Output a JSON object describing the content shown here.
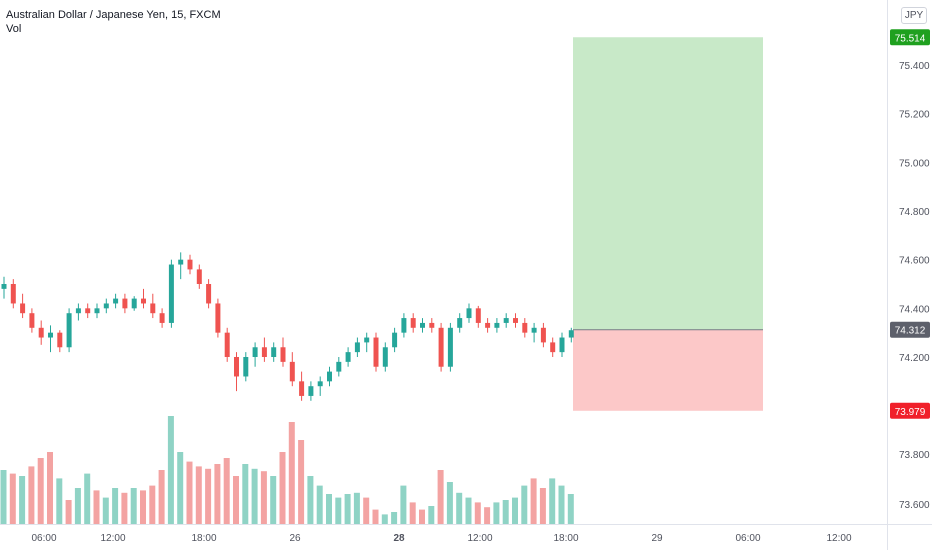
{
  "legend": {
    "symbol_title": "Australian Dollar / Japanese Yen, 15, FXCM",
    "volume_label": "Vol"
  },
  "currency_badge": "JPY",
  "colors": {
    "up": "#26a69a",
    "down": "#ef5350",
    "up_volume": "#8fd3c5",
    "down_volume": "#f3a3a2",
    "target_zone": "#c8e9c8",
    "stop_zone": "#fcc8c8",
    "target_badge": "#1fa01f",
    "stop_badge": "#f0202a",
    "last_badge": "#5d606b"
  },
  "chart_data": {
    "type": "candlestick",
    "title": "Australian Dollar / Japanese Yen, 15, FXCM",
    "y_axis": {
      "ticks": [
        "75.400",
        "75.200",
        "75.000",
        "74.800",
        "74.600",
        "74.400",
        "74.200",
        "73.800",
        "73.600"
      ],
      "range": [
        73.55,
        75.6
      ]
    },
    "x_axis": {
      "ticks": [
        "06:00",
        "12:00",
        "18:00",
        "26",
        "28",
        "12:00",
        "18:00",
        "29",
        "06:00",
        "12:00"
      ],
      "bold_ticks": [
        "28"
      ]
    },
    "price_badges": {
      "target": "75.514",
      "last": "74.312",
      "stop": "73.979"
    },
    "position": {
      "entry": 74.312,
      "target": 75.514,
      "stop": 73.979
    },
    "candles": [
      [
        74.48,
        74.53,
        74.44,
        74.5
      ],
      [
        74.5,
        74.52,
        74.4,
        74.42
      ],
      [
        74.42,
        74.46,
        74.36,
        74.38
      ],
      [
        74.38,
        74.4,
        74.3,
        74.32
      ],
      [
        74.32,
        74.35,
        74.25,
        74.28
      ],
      [
        74.28,
        74.33,
        74.22,
        74.3
      ],
      [
        74.3,
        74.31,
        74.22,
        74.24
      ],
      [
        74.24,
        74.4,
        74.22,
        74.38
      ],
      [
        74.38,
        74.42,
        74.35,
        74.4
      ],
      [
        74.4,
        74.42,
        74.36,
        74.38
      ],
      [
        74.38,
        74.42,
        74.36,
        74.4
      ],
      [
        74.4,
        74.44,
        74.38,
        74.42
      ],
      [
        74.42,
        74.46,
        74.4,
        74.44
      ],
      [
        74.44,
        74.46,
        74.38,
        74.4
      ],
      [
        74.4,
        74.45,
        74.39,
        74.44
      ],
      [
        74.44,
        74.48,
        74.4,
        74.42
      ],
      [
        74.42,
        74.46,
        74.36,
        74.38
      ],
      [
        74.38,
        74.4,
        74.32,
        74.34
      ],
      [
        74.34,
        74.6,
        74.32,
        74.58
      ],
      [
        74.58,
        74.63,
        74.52,
        74.6
      ],
      [
        74.6,
        74.62,
        74.54,
        74.56
      ],
      [
        74.56,
        74.58,
        74.48,
        74.5
      ],
      [
        74.5,
        74.52,
        74.4,
        74.42
      ],
      [
        74.42,
        74.44,
        74.28,
        74.3
      ],
      [
        74.3,
        74.32,
        74.18,
        74.2
      ],
      [
        74.2,
        74.22,
        74.06,
        74.12
      ],
      [
        74.12,
        74.22,
        74.1,
        74.2
      ],
      [
        74.2,
        74.26,
        74.16,
        74.24
      ],
      [
        74.24,
        74.28,
        74.18,
        74.2
      ],
      [
        74.2,
        74.26,
        74.18,
        74.24
      ],
      [
        74.24,
        74.28,
        74.16,
        74.18
      ],
      [
        74.18,
        74.22,
        74.08,
        74.1
      ],
      [
        74.1,
        74.14,
        74.02,
        74.04
      ],
      [
        74.04,
        74.1,
        74.02,
        74.08
      ],
      [
        74.08,
        74.12,
        74.04,
        74.1
      ],
      [
        74.1,
        74.16,
        74.08,
        74.14
      ],
      [
        74.14,
        74.2,
        74.12,
        74.18
      ],
      [
        74.18,
        74.24,
        74.16,
        74.22
      ],
      [
        74.22,
        74.28,
        74.2,
        74.26
      ],
      [
        74.26,
        74.3,
        74.22,
        74.28
      ],
      [
        74.28,
        74.3,
        74.14,
        74.16
      ],
      [
        74.16,
        74.26,
        74.14,
        74.24
      ],
      [
        74.24,
        74.32,
        74.22,
        74.3
      ],
      [
        74.3,
        74.38,
        74.28,
        74.36
      ],
      [
        74.36,
        74.38,
        74.3,
        74.32
      ],
      [
        74.32,
        74.36,
        74.3,
        74.34
      ],
      [
        74.34,
        74.36,
        74.3,
        74.32
      ],
      [
        74.32,
        74.34,
        74.14,
        74.16
      ],
      [
        74.16,
        74.34,
        74.14,
        74.32
      ],
      [
        74.32,
        74.38,
        74.3,
        74.36
      ],
      [
        74.36,
        74.42,
        74.34,
        74.4
      ],
      [
        74.4,
        74.41,
        74.32,
        74.34
      ],
      [
        74.34,
        74.36,
        74.3,
        74.32
      ],
      [
        74.32,
        74.36,
        74.3,
        74.34
      ],
      [
        74.34,
        74.38,
        74.32,
        74.36
      ],
      [
        74.36,
        74.38,
        74.32,
        74.34
      ],
      [
        74.34,
        74.36,
        74.28,
        74.3
      ],
      [
        74.3,
        74.34,
        74.26,
        74.32
      ],
      [
        74.32,
        74.34,
        74.24,
        74.26
      ],
      [
        74.26,
        74.28,
        74.2,
        74.22
      ],
      [
        74.22,
        74.3,
        74.2,
        74.28
      ],
      [
        74.28,
        74.32,
        74.26,
        74.31
      ]
    ],
    "volumes": [
      [
        0.45,
        1
      ],
      [
        0.42,
        0
      ],
      [
        0.4,
        1
      ],
      [
        0.48,
        0
      ],
      [
        0.55,
        0
      ],
      [
        0.6,
        0
      ],
      [
        0.38,
        1
      ],
      [
        0.2,
        0
      ],
      [
        0.3,
        1
      ],
      [
        0.42,
        1
      ],
      [
        0.28,
        0
      ],
      [
        0.22,
        1
      ],
      [
        0.3,
        1
      ],
      [
        0.26,
        0
      ],
      [
        0.3,
        1
      ],
      [
        0.28,
        0
      ],
      [
        0.32,
        0
      ],
      [
        0.45,
        0
      ],
      [
        0.9,
        1
      ],
      [
        0.6,
        1
      ],
      [
        0.52,
        0
      ],
      [
        0.48,
        0
      ],
      [
        0.46,
        0
      ],
      [
        0.5,
        0
      ],
      [
        0.55,
        0
      ],
      [
        0.4,
        0
      ],
      [
        0.5,
        1
      ],
      [
        0.46,
        1
      ],
      [
        0.44,
        0
      ],
      [
        0.4,
        1
      ],
      [
        0.6,
        0
      ],
      [
        0.85,
        0
      ],
      [
        0.7,
        0
      ],
      [
        0.4,
        1
      ],
      [
        0.32,
        1
      ],
      [
        0.25,
        1
      ],
      [
        0.22,
        1
      ],
      [
        0.25,
        1
      ],
      [
        0.26,
        1
      ],
      [
        0.22,
        0
      ],
      [
        0.12,
        0
      ],
      [
        0.08,
        1
      ],
      [
        0.1,
        1
      ],
      [
        0.32,
        1
      ],
      [
        0.18,
        0
      ],
      [
        0.12,
        0
      ],
      [
        0.15,
        1
      ],
      [
        0.45,
        0
      ],
      [
        0.35,
        1
      ],
      [
        0.26,
        1
      ],
      [
        0.22,
        1
      ],
      [
        0.18,
        0
      ],
      [
        0.14,
        0
      ],
      [
        0.18,
        1
      ],
      [
        0.2,
        1
      ],
      [
        0.22,
        1
      ],
      [
        0.32,
        1
      ],
      [
        0.38,
        0
      ],
      [
        0.3,
        0
      ],
      [
        0.38,
        1
      ],
      [
        0.32,
        1
      ],
      [
        0.25,
        1
      ]
    ]
  }
}
